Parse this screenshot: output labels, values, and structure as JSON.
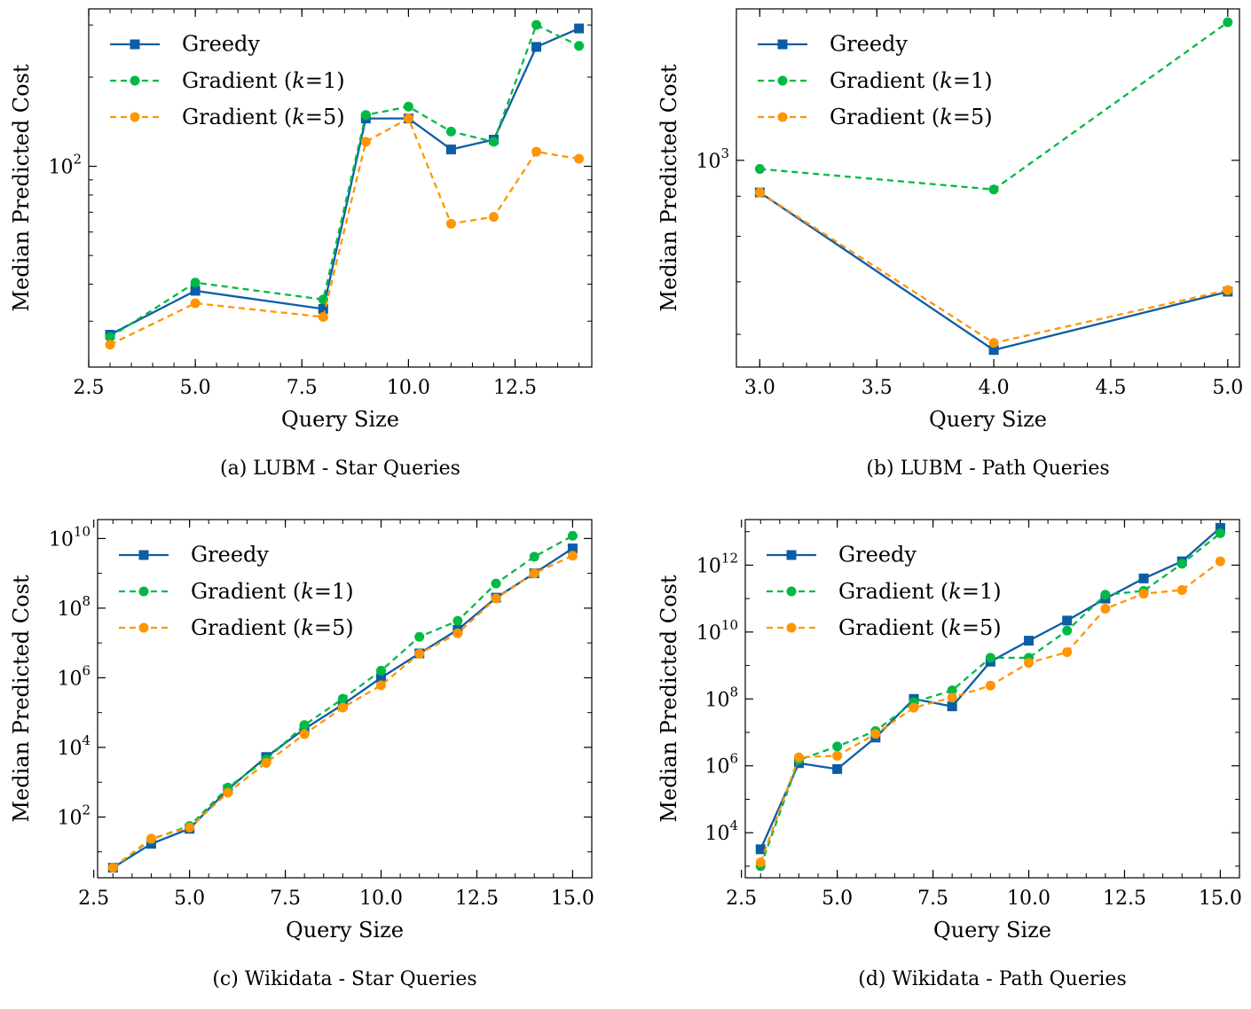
{
  "chart_data": [
    {
      "type": "line",
      "id": "a",
      "yscale": "log",
      "caption": "(a) LUBM - Star Queries",
      "xlabel": "Query Size",
      "ylabel": "Median Predicted Cost",
      "xlim": [
        2.5,
        14.3
      ],
      "ylim": [
        21,
        340
      ],
      "xticks": [
        2.5,
        5.0,
        7.5,
        10.0,
        12.5
      ],
      "xtick_labels": [
        "2.5",
        "5.0",
        "7.5",
        "10.0",
        "12.5"
      ],
      "yticks": [
        100
      ],
      "ytick_labels": [
        {
          "base": "10",
          "exp": "2"
        }
      ],
      "legend_position": "upper-left",
      "series": [
        {
          "name": "Greedy",
          "x": [
            3,
            5,
            8,
            9,
            10,
            11,
            12,
            13,
            14
          ],
          "values": [
            27,
            38,
            33,
            145,
            145,
            114,
            123,
            253,
            292
          ]
        },
        {
          "name": "Gradient (k=1)",
          "x": [
            3,
            5,
            8,
            9,
            10,
            11,
            12,
            13,
            14
          ],
          "values": [
            26.5,
            40.5,
            35.5,
            149,
            159,
            131,
            121,
            300,
            255
          ]
        },
        {
          "name": "Gradient (k=5)",
          "x": [
            3,
            5,
            8,
            9,
            10,
            11,
            12,
            13,
            14
          ],
          "values": [
            25,
            34.5,
            31,
            121,
            145,
            64,
            67.5,
            112,
            106
          ]
        }
      ]
    },
    {
      "type": "line",
      "id": "b",
      "yscale": "log",
      "caption": "(b) LUBM - Path Queries",
      "xlabel": "Query Size",
      "ylabel": "Median Predicted Cost",
      "xlim": [
        2.9,
        5.05
      ],
      "ylim": [
        545,
        1560
      ],
      "xticks": [
        3.0,
        3.5,
        4.0,
        4.5,
        5.0
      ],
      "xtick_labels": [
        "3.0",
        "3.5",
        "4.0",
        "4.5",
        "5.0"
      ],
      "yticks": [
        1000
      ],
      "ytick_labels": [
        {
          "base": "10",
          "exp": "3"
        }
      ],
      "legend_position": "upper-left",
      "series": [
        {
          "name": "Greedy",
          "x": [
            3,
            4,
            5
          ],
          "values": [
            910,
            573,
            680
          ]
        },
        {
          "name": "Gradient (k=1)",
          "x": [
            3,
            4,
            5
          ],
          "values": [
            975,
            918,
            1500
          ]
        },
        {
          "name": "Gradient (k=5)",
          "x": [
            3,
            4,
            5
          ],
          "values": [
            910,
            585,
            683
          ]
        }
      ]
    },
    {
      "type": "line",
      "id": "c",
      "yscale": "log",
      "caption": "(c) Wikidata - Star Queries",
      "xlabel": "Query Size",
      "ylabel": "Median Predicted Cost",
      "xlim": [
        2.6,
        15.5
      ],
      "ylim": [
        1.8,
        35000000000
      ],
      "xticks": [
        2.5,
        5.0,
        7.5,
        10.0,
        12.5,
        15.0
      ],
      "xtick_labels": [
        "2.5",
        "5.0",
        "7.5",
        "10.0",
        "12.5",
        "15.0"
      ],
      "yticks": [
        100,
        10000,
        1000000,
        100000000,
        10000000000
      ],
      "ytick_labels": [
        {
          "base": "10",
          "exp": "2"
        },
        {
          "base": "10",
          "exp": "4"
        },
        {
          "base": "10",
          "exp": "6"
        },
        {
          "base": "10",
          "exp": "8"
        },
        {
          "base": "10",
          "exp": "10"
        }
      ],
      "legend_position": "upper-left",
      "series": [
        {
          "name": "Greedy",
          "x": [
            3,
            4,
            5,
            6,
            7,
            8,
            9,
            10,
            11,
            12,
            13,
            14,
            15
          ],
          "values": [
            3.5,
            17,
            46,
            620,
            5300,
            34000,
            170000,
            1000000,
            5000000,
            24000000,
            200000000,
            1000000000,
            5200000000
          ]
        },
        {
          "name": "Gradient (k=1)",
          "x": [
            3,
            4,
            5,
            6,
            7,
            8,
            9,
            10,
            11,
            12,
            13,
            14,
            15
          ],
          "values": [
            3.5,
            23,
            55,
            700,
            4500,
            44000,
            250000,
            1600000,
            15000000,
            43000000,
            510000000,
            3000000000,
            12000000000
          ]
        },
        {
          "name": "Gradient (k=5)",
          "x": [
            3,
            4,
            5,
            6,
            7,
            8,
            9,
            10,
            11,
            12,
            13,
            14,
            15
          ],
          "values": [
            3.5,
            24,
            50,
            500,
            3600,
            24000,
            140000,
            610000,
            4900000,
            19000000,
            190000000,
            1000000000,
            3200000000
          ]
        }
      ]
    },
    {
      "type": "line",
      "id": "d",
      "yscale": "log",
      "caption": "(d) Wikidata - Path Queries",
      "xlabel": "Query Size",
      "ylabel": "Median Predicted Cost",
      "xlim": [
        2.6,
        15.5
      ],
      "ylim": [
        450,
        23000000000000
      ],
      "xticks": [
        2.5,
        5.0,
        7.5,
        10.0,
        12.5,
        15.0
      ],
      "xtick_labels": [
        "2.5",
        "5.0",
        "7.5",
        "10.0",
        "12.5",
        "15.0"
      ],
      "yticks": [
        10000,
        1000000,
        100000000,
        10000000000,
        1000000000000
      ],
      "ytick_labels": [
        {
          "base": "10",
          "exp": "4"
        },
        {
          "base": "10",
          "exp": "6"
        },
        {
          "base": "10",
          "exp": "8"
        },
        {
          "base": "10",
          "exp": "10"
        },
        {
          "base": "10",
          "exp": "12"
        }
      ],
      "legend_position": "upper-left",
      "series": [
        {
          "name": "Greedy",
          "x": [
            3,
            4,
            5,
            6,
            7,
            8,
            9,
            10,
            11,
            12,
            13,
            14,
            15
          ],
          "values": [
            3200,
            1200000,
            800000,
            7000000,
            100000000,
            60000000,
            1300000000,
            5500000000,
            22000000000,
            100000000000,
            400000000000,
            1300000000000,
            13000000000000
          ]
        },
        {
          "name": "Gradient (k=1)",
          "x": [
            3,
            4,
            5,
            6,
            7,
            8,
            9,
            10,
            11,
            12,
            13,
            14,
            15
          ],
          "values": [
            1000,
            1500000,
            3800000,
            11000000,
            80000000,
            180000000,
            1700000000,
            1700000000,
            11000000000,
            130000000000,
            170000000000,
            1100000000000,
            9000000000000
          ]
        },
        {
          "name": "Gradient (k=5)",
          "x": [
            3,
            4,
            5,
            6,
            7,
            8,
            9,
            10,
            11,
            12,
            13,
            14,
            15
          ],
          "values": [
            1300,
            1800000,
            2000000,
            9000000,
            55000000,
            110000000,
            250000000,
            1200000000,
            2500000000,
            50000000000,
            140000000000,
            180000000000,
            1300000000000
          ]
        }
      ]
    }
  ],
  "legend": {
    "greedy": "Greedy",
    "k1_prefix": "Gradient (",
    "k1_var": "k",
    "k1_suffix": "=1)",
    "k5_prefix": "Gradient (",
    "k5_var": "k",
    "k5_suffix": "=5)"
  },
  "colors": {
    "greedy": "#0c5da5",
    "gradient_k1": "#00b945",
    "gradient_k5": "#ff9500"
  }
}
